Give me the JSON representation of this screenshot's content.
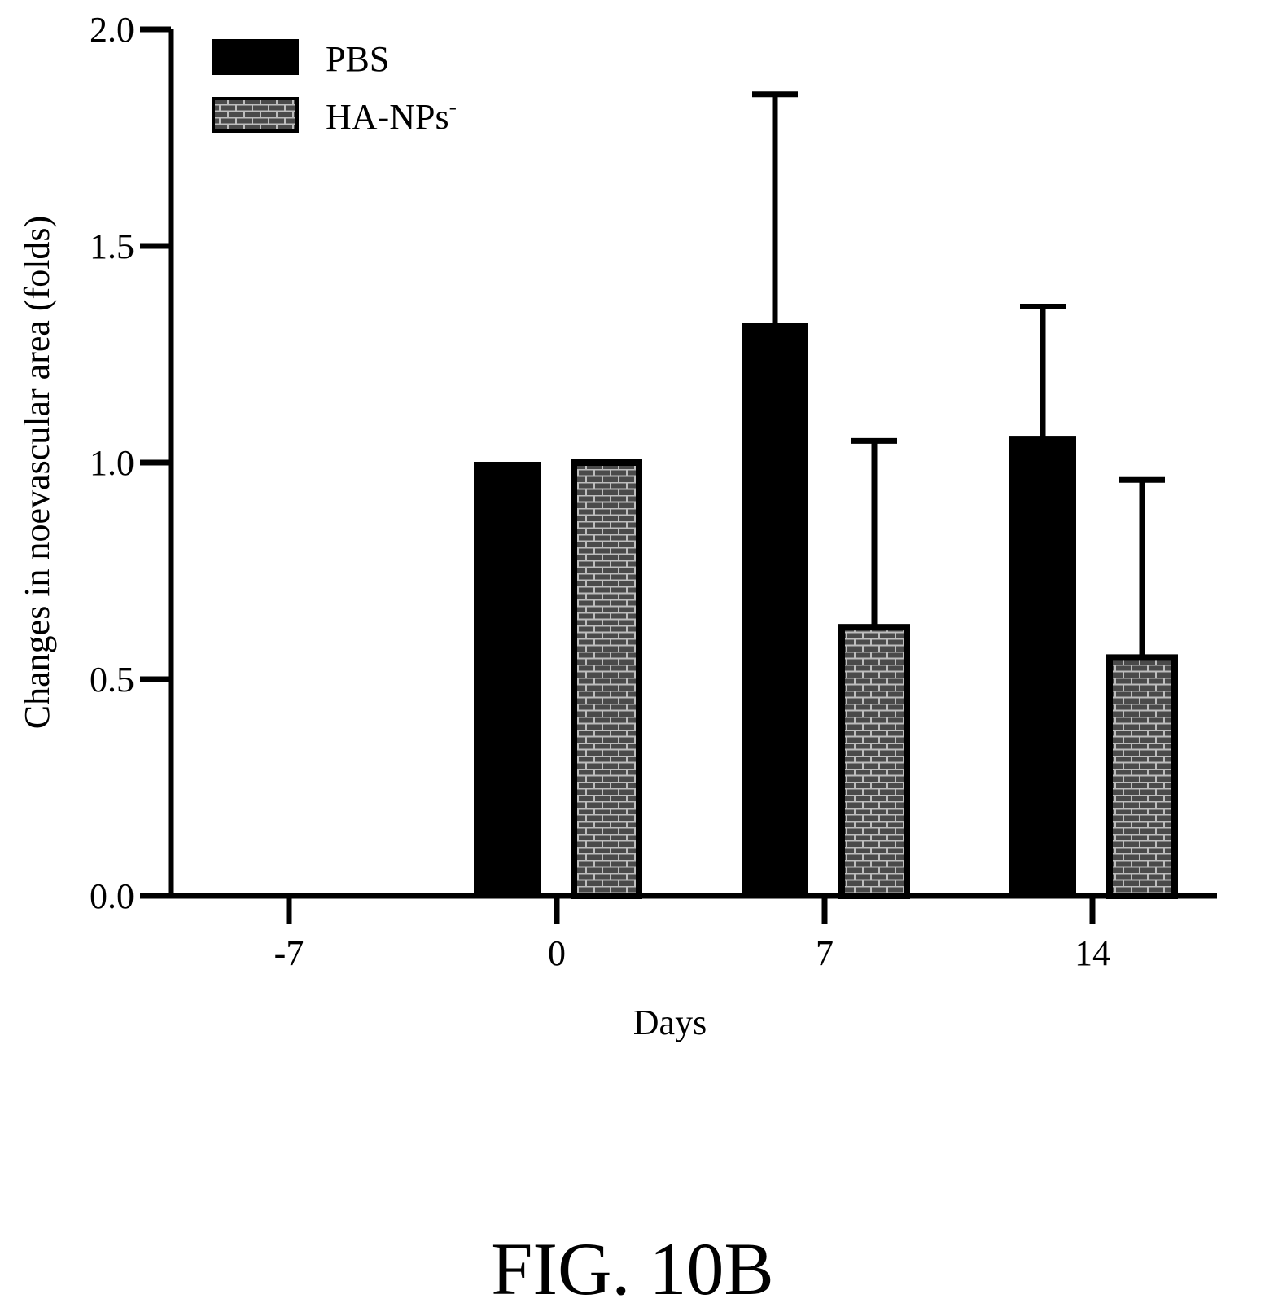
{
  "figure_caption": "FIG. 10B",
  "chart_data": {
    "type": "bar",
    "xlabel": "Days",
    "ylabel": "Changes in noevascular area (folds)",
    "categories": [
      "-7",
      "0",
      "7",
      "14"
    ],
    "ylim": [
      0,
      2.0
    ],
    "yticks": [
      "0.0",
      "0.5",
      "1.0",
      "1.5",
      "2.0"
    ],
    "legend_position": "top-left",
    "grid": false,
    "series": [
      {
        "name": "PBS",
        "legend_sup": "",
        "fill": "solid-black",
        "values": [
          null,
          1.0,
          1.32,
          1.06
        ],
        "error_upper": [
          null,
          0,
          1.85,
          1.36
        ]
      },
      {
        "name": "HA-NPs",
        "legend_sup": "-",
        "fill": "gray-brick-pattern",
        "values": [
          null,
          1.0,
          0.62,
          0.55
        ],
        "error_upper": [
          null,
          0,
          1.05,
          0.96
        ]
      }
    ]
  }
}
